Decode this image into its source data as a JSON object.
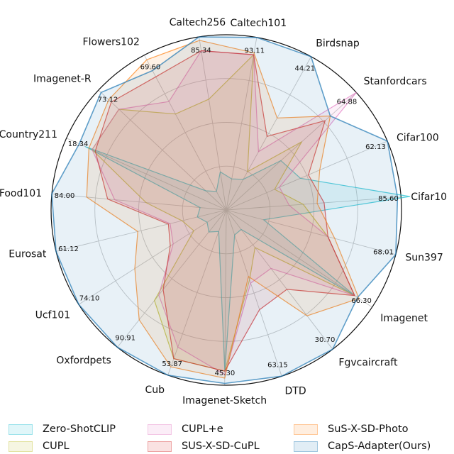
{
  "chart_data": {
    "type": "radar",
    "title": "",
    "categories": [
      "Caltech101",
      "Birdsnap",
      "Stanfordcars",
      "Cifar100",
      "Cifar10",
      "Sun397",
      "Imagenet",
      "Fgvcaircraft",
      "DTD",
      "Imagenet-Sketch",
      "Cub",
      "Oxfordpets",
      "Ucf101",
      "Eurosat",
      "Food101",
      "Country211",
      "Imagenet-R",
      "Flowers102",
      "Caltech256"
    ],
    "max_labels": [
      "93.11",
      "44.21",
      "64.88",
      "62.13",
      "85.60",
      "68.01",
      "66.30",
      "30.70",
      "63.15",
      "45.30",
      "53.87",
      "90.91",
      "74.10",
      "61.12",
      "84.00",
      "18.34",
      "73.12",
      "69.60",
      "85.34"
    ],
    "rings": 4,
    "range": [
      0,
      1
    ],
    "series": [
      {
        "name": "Zero-ShotCLIP",
        "color": "#17becf",
        "values": [
          0.18,
          0.2,
          0.42,
          0.46,
          1.05,
          0.22,
          0.88,
          0.14,
          0.15,
          0.92,
          0.13,
          0.16,
          0.13,
          0.17,
          0.15,
          0.88,
          0.16,
          0.12,
          0.22
        ]
      },
      {
        "name": "CUPL",
        "color": "#bcbd22",
        "values": [
          0.9,
          0.25,
          0.58,
          0.3,
          0.44,
          0.6,
          0.88,
          0.27,
          0.42,
          0.92,
          0.9,
          0.66,
          0.22,
          0.26,
          0.46,
          0.84,
          0.84,
          0.62,
          0.64
        ]
      },
      {
        "name": "CUPL+e",
        "color": "#e377c2",
        "values": [
          0.9,
          0.38,
          1.0,
          0.33,
          0.36,
          0.6,
          0.88,
          0.42,
          0.44,
          0.94,
          0.83,
          0.62,
          0.36,
          0.33,
          0.64,
          0.84,
          0.84,
          0.7,
          0.92
        ]
      },
      {
        "name": "SUS-X-SD-CuPL",
        "color": "#d62728",
        "values": [
          0.9,
          0.48,
          0.76,
          0.51,
          0.56,
          0.6,
          0.88,
          0.57,
          0.6,
          0.92,
          0.9,
          0.58,
          0.38,
          0.34,
          0.68,
          0.82,
          0.9,
          0.86,
          0.92
        ]
      },
      {
        "name": "SuS-X-SD-Photo",
        "color": "#ff7f0e",
        "values": [
          0.91,
          0.6,
          0.8,
          0.58,
          0.52,
          0.64,
          0.91,
          0.76,
          0.4,
          0.96,
          0.95,
          0.8,
          0.62,
          0.52,
          0.8,
          0.86,
          0.92,
          0.97,
          0.98
        ]
      },
      {
        "name": "CapS-Adapter(Ours)",
        "color": "#1f77b4",
        "values": [
          1.0,
          1.0,
          0.8,
          1.0,
          0.98,
          1.0,
          0.9,
          1.0,
          1.0,
          0.99,
          1.0,
          1.0,
          1.0,
          1.0,
          1.0,
          0.92,
          0.98,
          0.9,
          1.0
        ]
      }
    ],
    "legend_position": "bottom"
  }
}
